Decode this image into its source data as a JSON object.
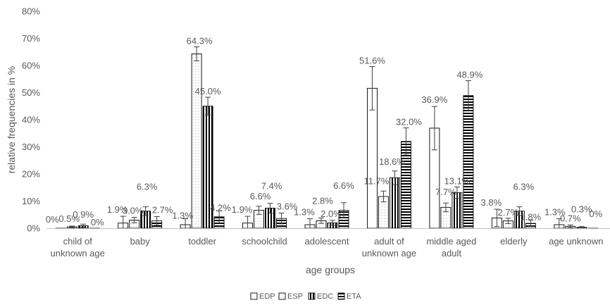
{
  "chart_data": {
    "type": "bar",
    "ylabel": "relative frequencies in %",
    "xlabel": "age groups",
    "ylim": [
      0,
      80
    ],
    "ytick_labels": [
      "0%",
      "10%",
      "20%",
      "30%",
      "40%",
      "50%",
      "60%",
      "70%",
      "80%"
    ],
    "grid": false,
    "legend_position": "bottom",
    "categories": [
      [
        "child of",
        "unknown age"
      ],
      [
        "baby"
      ],
      [
        "toddler"
      ],
      [
        "schoolchild"
      ],
      [
        "adolescent"
      ],
      [
        "adult of",
        "unknown age"
      ],
      [
        "middle aged",
        "adult"
      ],
      [
        "elderly"
      ],
      [
        "age unknown"
      ]
    ],
    "series": [
      {
        "name": "EDP",
        "pattern": "plain",
        "values": [
          0,
          1.9,
          1.3,
          1.9,
          1.3,
          51.6,
          36.9,
          3.8,
          1.3
        ],
        "labels": [
          "0%",
          "1.9%",
          "1.3%",
          "1.9%",
          "1.3%",
          "51.6%",
          "36.9%",
          "3.8%",
          "1.3%"
        ],
        "err": [
          0,
          2.5,
          2.2,
          2.5,
          2.2,
          8,
          8,
          3.2,
          2.2
        ]
      },
      {
        "name": "ESP",
        "pattern": "dots",
        "values": [
          0.5,
          3.0,
          64.3,
          6.6,
          2.8,
          11.7,
          7.7,
          2.7,
          0.7
        ],
        "labels": [
          "0.5%",
          "3.0%",
          "64.3%",
          "6.6%",
          "2.8%",
          "11.7%",
          "7.7%",
          "2.7%",
          "0.7%"
        ],
        "err": [
          0.3,
          1.0,
          2.6,
          1.5,
          1.0,
          2.0,
          1.6,
          1.0,
          0.5
        ]
      },
      {
        "name": "EDC",
        "pattern": "vertical",
        "values": [
          0.9,
          6.3,
          45.0,
          7.4,
          2.0,
          18.6,
          13.1,
          6.3,
          0.3
        ],
        "labels": [
          "0.9%",
          "6.3%",
          "45.0%",
          "7.4%",
          "2.0%",
          "18.6%",
          "13.1%",
          "6.3%",
          "0.3%"
        ],
        "err": [
          0.6,
          1.6,
          3.3,
          1.8,
          0.9,
          2.5,
          2.1,
          1.6,
          0.3
        ]
      },
      {
        "name": "ETA",
        "pattern": "horizontal",
        "values": [
          0,
          2.7,
          4.2,
          3.6,
          6.6,
          32.0,
          48.9,
          1.8,
          0
        ],
        "labels": [
          "0%",
          "2.7%",
          "4.2%",
          "3.6%",
          "6.6%",
          "32.0%",
          "48.9%",
          "1.8%",
          "0%"
        ],
        "err": [
          0,
          1.6,
          2.2,
          2.0,
          2.8,
          5.0,
          5.5,
          1.2,
          0
        ]
      }
    ]
  },
  "colors": {
    "text": "#595959",
    "axis": "#bfbfbf",
    "bar_stroke": "#000000",
    "bar_fill": "#ffffff",
    "error_bar": "#404040"
  }
}
